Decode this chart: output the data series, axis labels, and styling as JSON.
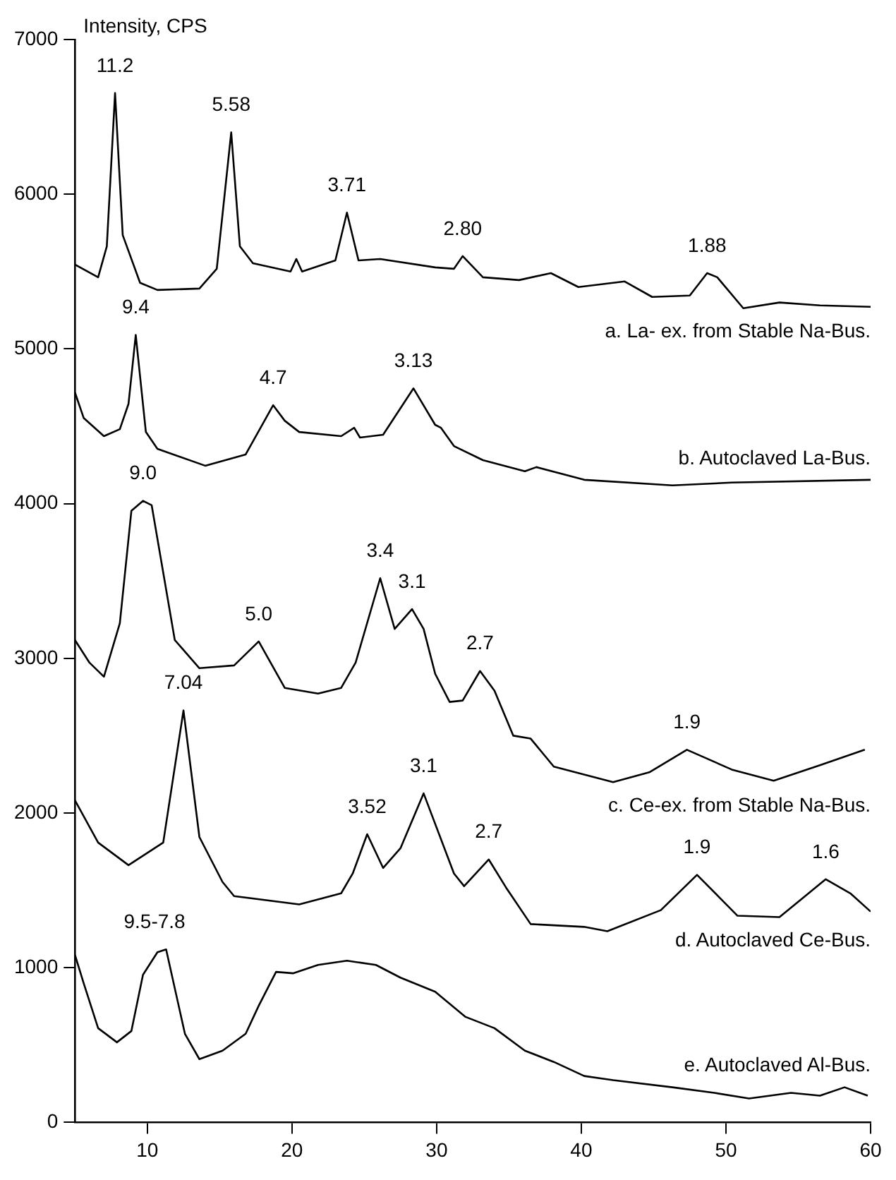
{
  "chart_data": {
    "type": "line",
    "ylabel": "Intensity, CPS",
    "xlim": [
      5,
      60
    ],
    "xticks": [
      10,
      20,
      30,
      40,
      50,
      60
    ],
    "ylim": [
      0,
      7000
    ],
    "yticks": [
      0,
      1000,
      2000,
      3000,
      4000,
      5000,
      6000,
      7000
    ],
    "grid": false,
    "legend": false,
    "marker": "none",
    "line_style": "solid",
    "series": [
      {
        "name": "a. La- ex. from Stable Na-Bus.",
        "color": "#000000",
        "x": [
          5,
          6.6,
          7.2,
          7.77,
          8.3,
          9.5,
          10.7,
          13.6,
          14.8,
          15.8,
          16.4,
          17.3,
          19.9,
          20.3,
          20.7,
          23.0,
          23.8,
          24.6,
          26.1,
          29.9,
          31.2,
          31.8,
          33.2,
          35.7,
          37.9,
          39.8,
          43.0,
          44.9,
          47.5,
          48.7,
          49.4,
          51.2,
          53.7,
          56.5,
          60
        ],
        "values": [
          5545,
          5463,
          5663,
          6654,
          5736,
          5427,
          5381,
          5390,
          5518,
          6400,
          5663,
          5554,
          5500,
          5581,
          5500,
          5572,
          5881,
          5572,
          5581,
          5527,
          5518,
          5600,
          5463,
          5445,
          5490,
          5400,
          5436,
          5336,
          5345,
          5490,
          5463,
          5263,
          5300,
          5281,
          5272
        ]
      },
      {
        "name": "b. Autoclaved La-Bus.",
        "color": "#000000",
        "x": [
          5,
          5.6,
          7.0,
          8.1,
          8.7,
          9.2,
          9.9,
          10.7,
          14.0,
          16.8,
          18.7,
          19.5,
          20.5,
          23.4,
          24.3,
          24.7,
          26.3,
          28.4,
          29.9,
          30.3,
          31.2,
          33.2,
          36.1,
          36.9,
          40.2,
          46.3,
          50.4,
          60
        ],
        "values": [
          4718,
          4554,
          4436,
          4481,
          4645,
          5090,
          4463,
          4354,
          4245,
          4318,
          4636,
          4536,
          4463,
          4436,
          4490,
          4427,
          4445,
          4745,
          4509,
          4490,
          4372,
          4281,
          4209,
          4236,
          4154,
          4118,
          4136,
          4154
        ]
      },
      {
        "name": "c. Ce-ex. from Stable Na-Bus.",
        "color": "#000000",
        "x": [
          5,
          6.0,
          7.0,
          8.1,
          8.9,
          9.7,
          10.3,
          11.3,
          11.9,
          13.6,
          16.0,
          17.7,
          19.5,
          21.8,
          23.4,
          24.4,
          26.1,
          27.1,
          28.3,
          29.1,
          29.9,
          30.9,
          31.8,
          33.0,
          34.0,
          35.3,
          36.5,
          38.1,
          42.2,
          44.7,
          47.3,
          50.4,
          53.3,
          56.5,
          59.6
        ],
        "values": [
          3118,
          2972,
          2881,
          3227,
          3954,
          4018,
          3990,
          3445,
          3118,
          2936,
          2954,
          3109,
          2809,
          2772,
          2809,
          2972,
          3518,
          3190,
          3318,
          3190,
          2900,
          2718,
          2727,
          2918,
          2790,
          2500,
          2481,
          2300,
          2200,
          2263,
          2409,
          2281,
          2209,
          2309,
          2409
        ]
      },
      {
        "name": "d. Autoclaved Ce-Bus.",
        "color": "#000000",
        "x": [
          5,
          6.6,
          8.7,
          11.1,
          12.5,
          13.6,
          15.2,
          16.0,
          20.5,
          23.4,
          24.2,
          25.2,
          26.3,
          27.5,
          29.1,
          31.2,
          31.9,
          33.6,
          34.8,
          36.5,
          40.2,
          41.8,
          45.5,
          48.0,
          50.8,
          53.7,
          56.9,
          58.6,
          60
        ],
        "values": [
          2082,
          1809,
          1663,
          1809,
          2663,
          1845,
          1554,
          1463,
          1409,
          1481,
          1609,
          1863,
          1645,
          1772,
          2127,
          1609,
          1527,
          1700,
          1518,
          1282,
          1264,
          1236,
          1372,
          1600,
          1336,
          1327,
          1572,
          1481,
          1363
        ]
      },
      {
        "name": "e. Autoclaved Al-Bus.",
        "color": "#000000",
        "x": [
          5,
          5.6,
          6.6,
          7.9,
          8.9,
          9.7,
          10.7,
          11.3,
          12.6,
          13.6,
          15.2,
          16.8,
          17.7,
          18.9,
          20.1,
          21.8,
          23.8,
          25.8,
          27.5,
          29.9,
          32.0,
          34.0,
          36.1,
          38.1,
          40.2,
          42.2,
          46.3,
          49.2,
          51.6,
          54.5,
          56.5,
          58.2,
          59.8
        ],
        "values": [
          1082,
          900,
          609,
          518,
          591,
          954,
          1100,
          1118,
          573,
          409,
          464,
          573,
          754,
          973,
          964,
          1018,
          1045,
          1018,
          936,
          845,
          682,
          609,
          464,
          391,
          300,
          273,
          227,
          191,
          155,
          191,
          173,
          227,
          173
        ]
      }
    ],
    "annotations": [
      {
        "text": "11.2",
        "x": 7.77,
        "y": 6654
      },
      {
        "text": "5.58",
        "x": 15.8,
        "y": 6400
      },
      {
        "text": "3.71",
        "x": 23.8,
        "y": 5881
      },
      {
        "text": "2.80",
        "x": 31.8,
        "y": 5600
      },
      {
        "text": "1.88",
        "x": 48.7,
        "y": 5490
      },
      {
        "text": "9.4",
        "x": 9.2,
        "y": 5090
      },
      {
        "text": "4.7",
        "x": 18.7,
        "y": 4636
      },
      {
        "text": "3.13",
        "x": 28.4,
        "y": 4745
      },
      {
        "text": "9.0",
        "x": 9.7,
        "y": 4018
      },
      {
        "text": "5.0",
        "x": 17.7,
        "y": 3109
      },
      {
        "text": "3.4",
        "x": 26.1,
        "y": 3518
      },
      {
        "text": "3.1",
        "x": 28.3,
        "y": 3318
      },
      {
        "text": "2.7",
        "x": 33.0,
        "y": 2918
      },
      {
        "text": "1.9",
        "x": 47.3,
        "y": 2409
      },
      {
        "text": "7.04",
        "x": 12.5,
        "y": 2663
      },
      {
        "text": "3.52",
        "x": 25.2,
        "y": 1863
      },
      {
        "text": "3.1",
        "x": 29.1,
        "y": 2127
      },
      {
        "text": "2.7",
        "x": 33.6,
        "y": 1700
      },
      {
        "text": "1.9",
        "x": 48.0,
        "y": 1600
      },
      {
        "text": "1.6",
        "x": 56.9,
        "y": 1572
      },
      {
        "text": "9.5-7.8",
        "x": 10.5,
        "y": 1118
      }
    ]
  }
}
